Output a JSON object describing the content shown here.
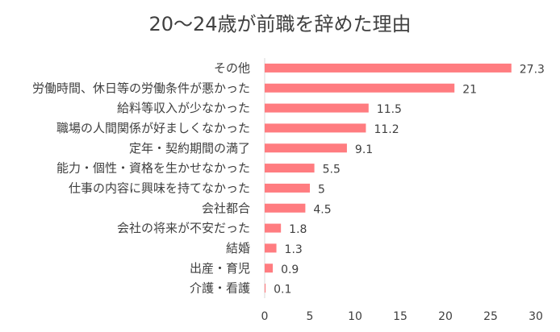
{
  "chart_data": {
    "type": "bar",
    "orientation": "horizontal",
    "title": "20〜24歳が前職を辞めた理由",
    "categories": [
      "その他",
      "労働時間、休日等の労働条件が悪かった",
      "給料等収入が少なかった",
      "職場の人間関係が好ましくなかった",
      "定年・契約期間の満了",
      "能力・個性・資格を生かせなかった",
      "仕事の内容に興味を持てなかった",
      "会社都合",
      "会社の将来が不安だった",
      "結婚",
      "出産・育児",
      "介護・看護"
    ],
    "values": [
      27.3,
      21,
      11.5,
      11.2,
      9.1,
      5.5,
      5,
      4.5,
      1.8,
      1.3,
      0.9,
      0.1
    ],
    "value_labels": [
      "27.3",
      "21",
      "11.5",
      "11.2",
      "9.1",
      "5.5",
      "5",
      "4.5",
      "1.8",
      "1.3",
      "0.9",
      "0.1"
    ],
    "x_ticks": [
      "0",
      "5",
      "10",
      "15",
      "20",
      "25",
      "30"
    ],
    "xlim": [
      0,
      30
    ],
    "bar_color": "#FF7C80",
    "grid": false,
    "legend": false
  }
}
